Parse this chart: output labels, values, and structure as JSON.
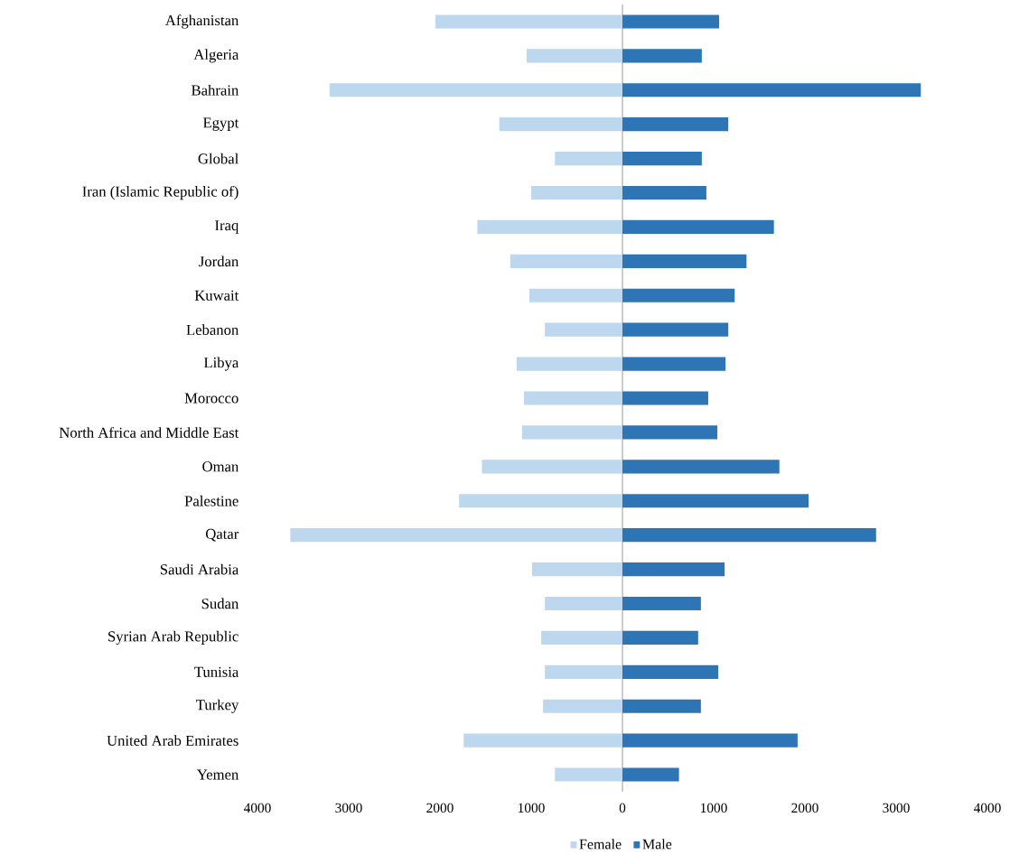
{
  "chart_data": {
    "type": "bar",
    "orientation": "horizontal",
    "stacked": true,
    "categories": [
      "Afghanistan",
      "Algeria",
      "Bahrain",
      "Egypt",
      "Global",
      "Iran (Islamic Republic of)",
      "Iraq",
      "Jordan",
      "Kuwait",
      "Lebanon",
      "Libya",
      "Morocco",
      "North Africa and Middle East",
      "Oman",
      "Palestine",
      "Qatar",
      "Saudi Arabia",
      "Sudan",
      "Syrian Arab Republic",
      "Tunisia",
      "Turkey",
      "United Arab Emirates",
      "Yemen"
    ],
    "series": [
      {
        "name": "Female",
        "color": "#bdd7ee",
        "values": [
          -2050,
          -1050,
          -3210,
          -1350,
          -740,
          -1000,
          -1590,
          -1230,
          -1020,
          -850,
          -1160,
          -1080,
          -1100,
          -1540,
          -1790,
          -3640,
          -990,
          -850,
          -890,
          -850,
          -870,
          -1740,
          -740
        ]
      },
      {
        "name": "Male",
        "color": "#2e75b6",
        "values": [
          1060,
          870,
          3270,
          1160,
          870,
          920,
          1660,
          1360,
          1230,
          1160,
          1130,
          940,
          1040,
          1720,
          2040,
          2780,
          1120,
          860,
          830,
          1050,
          860,
          1920,
          620
        ]
      }
    ],
    "xlim": [
      -4000,
      4000
    ],
    "xticks": [
      {
        "value": -4000,
        "label": "4000"
      },
      {
        "value": -3000,
        "label": "3000"
      },
      {
        "value": -2000,
        "label": "2000"
      },
      {
        "value": -1000,
        "label": "1000"
      },
      0,
      1000,
      2000,
      3000,
      4000
    ],
    "legend": "bottom"
  }
}
